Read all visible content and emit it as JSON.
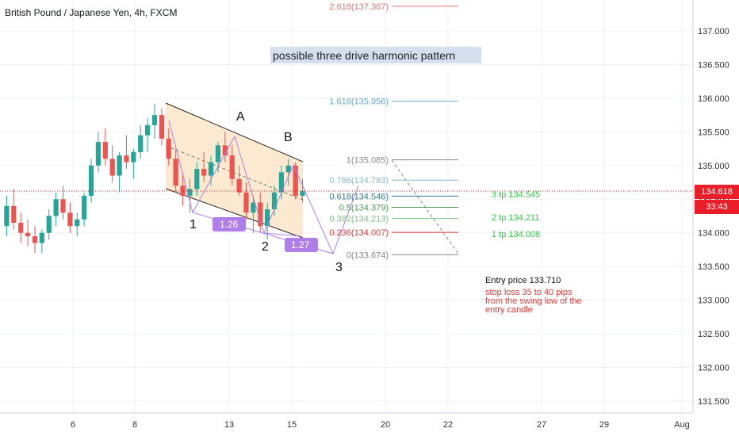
{
  "header": {
    "title": "British Pound / Japanese Yen, 4h, FXCM"
  },
  "price_axis": {
    "ticks": [
      "137.000",
      "136.500",
      "136.000",
      "135.500",
      "135.000",
      "134.500",
      "134.000",
      "133.500",
      "133.000",
      "132.500",
      "132.000",
      "131.500"
    ],
    "current_price": "134.618",
    "countdown": "33:43",
    "current_price_color": "#e91e28"
  },
  "time_axis": {
    "ticks": [
      "6",
      "8",
      "13",
      "15",
      "20",
      "22",
      "27",
      "29",
      "Aug"
    ]
  },
  "chart_data": {
    "type": "candlestick",
    "symbol": "GBPJPY",
    "timeframe": "4h",
    "ylim": [
      131.3,
      137.6
    ],
    "fib_levels": [
      {
        "label": "2.618(137.367)",
        "color": "#e57373"
      },
      {
        "label": "1.618(135.956)",
        "color": "#5aa9cf"
      },
      {
        "label": "1(135.085)",
        "color": "#888888"
      },
      {
        "label": "0.786(134.783)",
        "color": "#8ab6c9"
      },
      {
        "label": "0.618(134.546)",
        "color": "#2e7d8c"
      },
      {
        "label": "0.5(134.379)",
        "color": "#4c9a55"
      },
      {
        "label": "0.382(134.213)",
        "color": "#7cc285"
      },
      {
        "label": "0.236(134.007)",
        "color": "#e53935"
      },
      {
        "label": "0(133.674)",
        "color": "#888888"
      }
    ],
    "targets": [
      "3 tp 134.545",
      "2 tp 134.211",
      "1 tp 134.008"
    ],
    "wave_labels": [
      "A",
      "B",
      "1",
      "2",
      "3"
    ],
    "ratio_labels": [
      "1.26",
      "1.27"
    ],
    "annotation": "possible three drive harmonic pattern",
    "entry": {
      "entry_text": "Entry price 133.710",
      "stop_text": [
        "stop loss 35 to 40 pips",
        "from the swing low of the",
        "entry candle"
      ]
    },
    "colors": {
      "up": "#26a69a",
      "down": "#ef5350",
      "channel": "#fbe3c0",
      "pattern": "#b07ee8",
      "grid": "#eef0f4"
    },
    "candles": [
      [
        134.1,
        134.55,
        133.95,
        134.4
      ],
      [
        134.4,
        134.65,
        134.05,
        134.15
      ],
      [
        134.15,
        134.3,
        133.85,
        134.0
      ],
      [
        134.0,
        134.2,
        133.8,
        133.95
      ],
      [
        133.95,
        134.1,
        133.7,
        133.85
      ],
      [
        133.85,
        134.05,
        133.7,
        134.0
      ],
      [
        134.0,
        134.35,
        133.9,
        134.25
      ],
      [
        134.25,
        134.6,
        134.1,
        134.5
      ],
      [
        134.5,
        134.7,
        134.2,
        134.3
      ],
      [
        134.3,
        134.45,
        134.0,
        134.1
      ],
      [
        134.1,
        134.3,
        133.95,
        134.2
      ],
      [
        134.2,
        134.6,
        134.1,
        134.55
      ],
      [
        134.55,
        135.1,
        134.45,
        135.0
      ],
      [
        135.0,
        135.5,
        134.9,
        135.35
      ],
      [
        135.35,
        135.55,
        135.0,
        135.1
      ],
      [
        135.1,
        135.3,
        134.75,
        134.85
      ],
      [
        134.85,
        135.2,
        134.6,
        135.15
      ],
      [
        135.15,
        135.45,
        134.95,
        135.05
      ],
      [
        135.05,
        135.25,
        134.8,
        135.2
      ],
      [
        135.2,
        135.6,
        135.1,
        135.45
      ],
      [
        135.45,
        135.7,
        135.2,
        135.6
      ],
      [
        135.6,
        135.92,
        135.4,
        135.75
      ],
      [
        135.75,
        135.85,
        135.3,
        135.4
      ],
      [
        135.4,
        135.55,
        135.0,
        135.1
      ],
      [
        135.1,
        135.25,
        134.6,
        134.7
      ],
      [
        134.7,
        134.9,
        134.4,
        134.55
      ],
      [
        134.55,
        134.8,
        134.3,
        134.65
      ],
      [
        134.65,
        135.05,
        134.55,
        134.95
      ],
      [
        134.95,
        135.2,
        134.75,
        134.85
      ],
      [
        134.85,
        135.15,
        134.7,
        135.05
      ],
      [
        135.05,
        135.35,
        134.9,
        135.3
      ],
      [
        135.3,
        135.5,
        135.05,
        135.15
      ],
      [
        135.15,
        135.3,
        134.7,
        134.8
      ],
      [
        134.8,
        135.0,
        134.55,
        134.6
      ],
      [
        134.6,
        134.75,
        134.2,
        134.3
      ],
      [
        134.3,
        134.55,
        134.0,
        134.45
      ],
      [
        134.45,
        134.6,
        134.0,
        134.1
      ],
      [
        134.1,
        134.45,
        133.9,
        134.35
      ],
      [
        134.35,
        134.7,
        134.25,
        134.6
      ],
      [
        134.6,
        135.0,
        134.5,
        134.9
      ],
      [
        134.9,
        135.1,
        134.7,
        135.0
      ],
      [
        135.0,
        135.05,
        134.5,
        134.55
      ],
      [
        134.55,
        134.8,
        134.45,
        134.62
      ]
    ]
  }
}
